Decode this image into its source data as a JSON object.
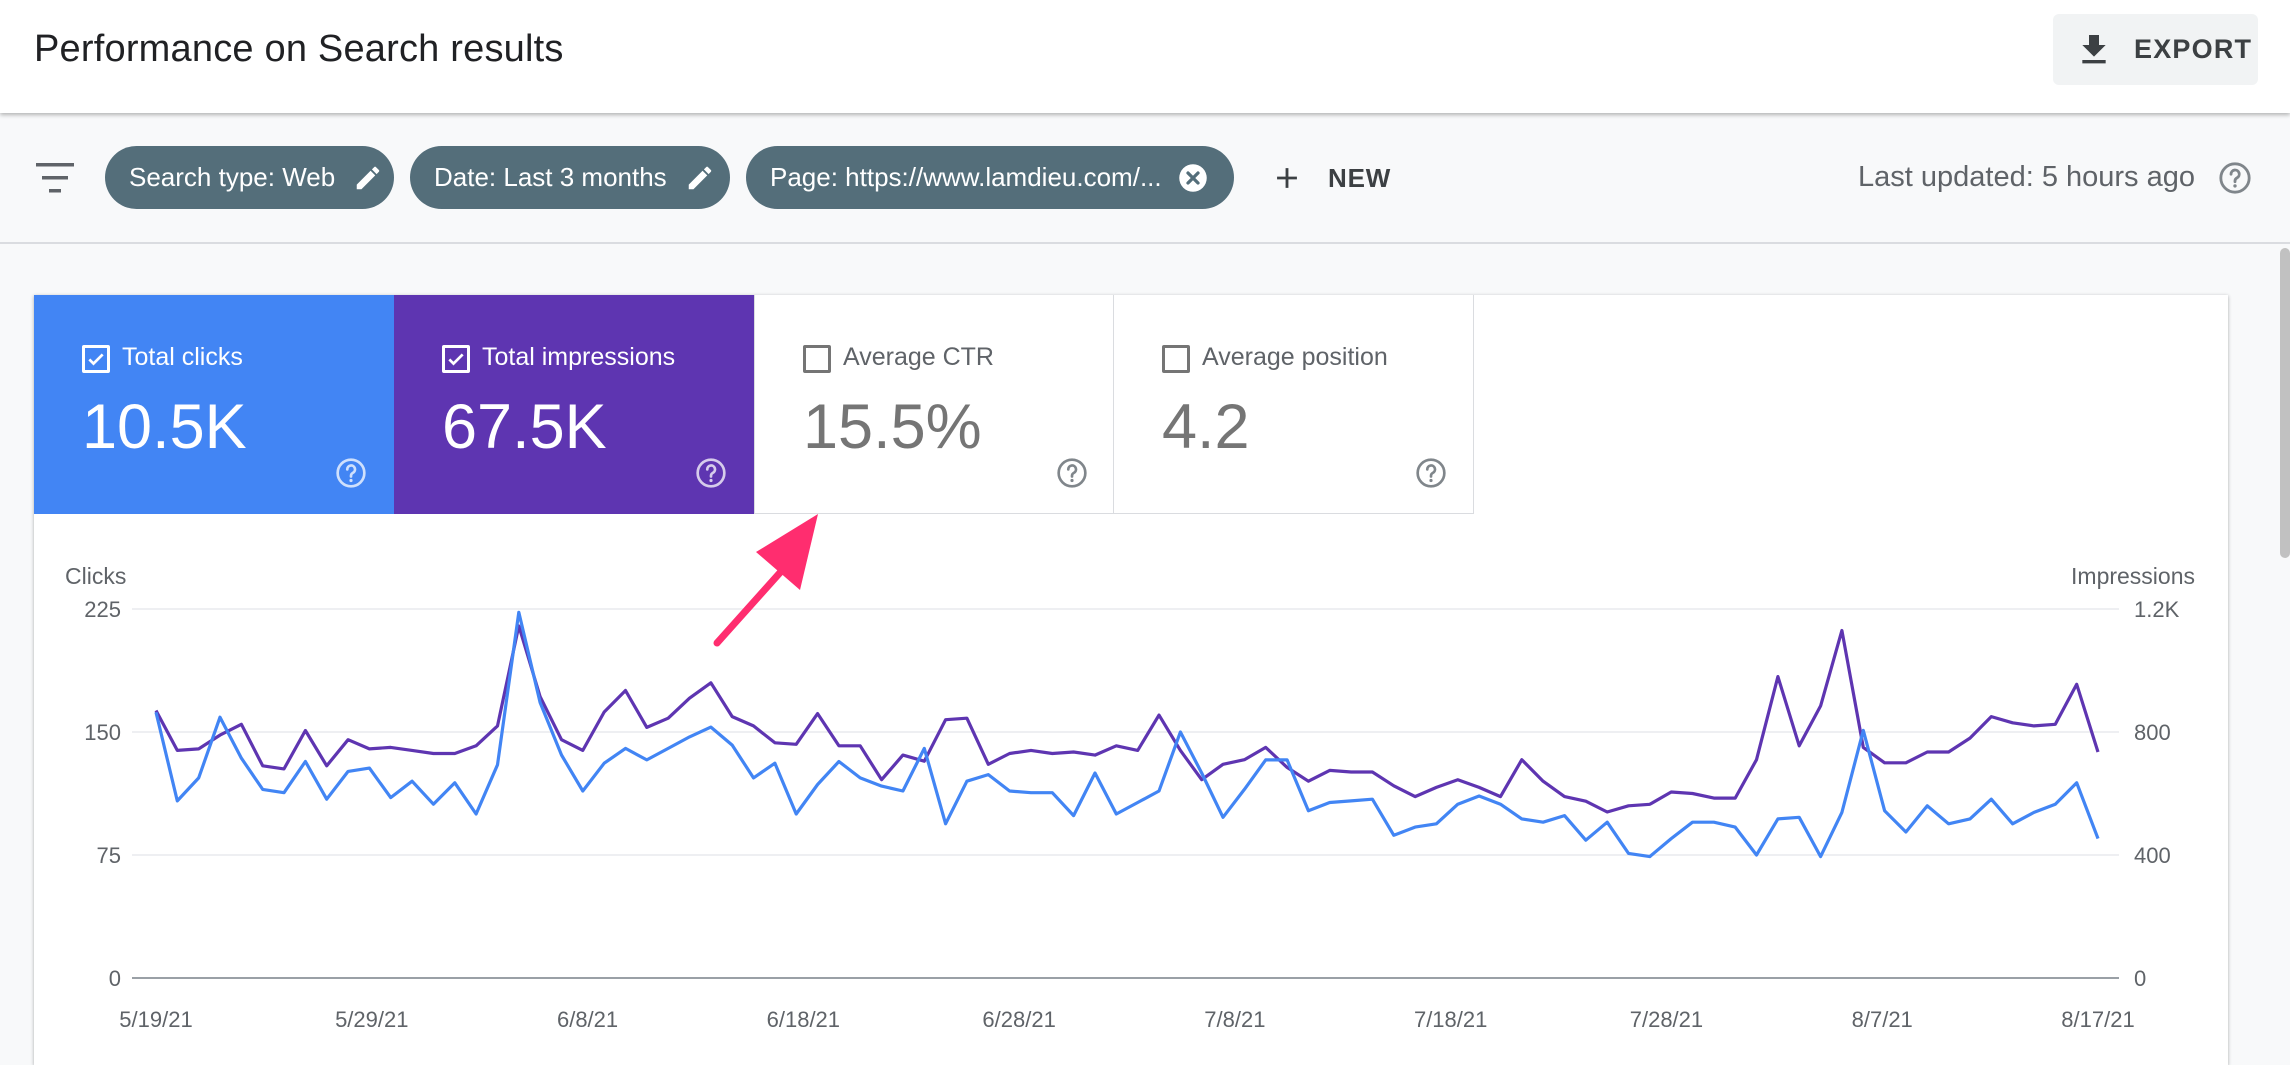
{
  "header": {
    "title": "Performance on Search results",
    "export_label": "EXPORT",
    "export_icon": "download-icon"
  },
  "filters": {
    "filter_icon": "filter-list-icon",
    "chips": [
      {
        "label": "Search type: Web",
        "icon": "edit-icon"
      },
      {
        "label": "Date: Last 3 months",
        "icon": "edit-icon"
      },
      {
        "label": "Page: https://www.lamdieu.com/...",
        "icon": "close-circle-icon"
      }
    ],
    "new_label": "NEW",
    "last_updated": "Last updated: 5 hours ago"
  },
  "metrics": [
    {
      "label": "Total clicks",
      "value": "10.5K",
      "checked": true,
      "color": "#4285f4"
    },
    {
      "label": "Total impressions",
      "value": "67.5K",
      "checked": true,
      "color": "#5e35b1"
    },
    {
      "label": "Average CTR",
      "value": "15.5%",
      "checked": false
    },
    {
      "label": "Average position",
      "value": "4.2",
      "checked": false
    }
  ],
  "annotation": {
    "icon": "pointer-arrow-icon",
    "color": "#ff2d6f"
  },
  "chart_data": {
    "type": "line",
    "ylabel_left": "Clicks",
    "ylabel_right": "Impressions",
    "y_left_ticks": [
      "225",
      "150",
      "75",
      "0"
    ],
    "y_right_ticks": [
      "1.2K",
      "800",
      "400",
      "0"
    ],
    "ylim_left": [
      0,
      225
    ],
    "ylim_right": [
      0,
      1200
    ],
    "x_tick_labels": [
      "5/19/21",
      "5/29/21",
      "6/8/21",
      "6/18/21",
      "6/28/21",
      "7/8/21",
      "7/18/21",
      "7/28/21",
      "8/7/21",
      "8/17/21"
    ],
    "grid": true,
    "series": [
      {
        "name": "Clicks",
        "axis": "left",
        "color": "#4285f4",
        "values": [
          162,
          108,
          122,
          159,
          134,
          115,
          113,
          132,
          109,
          126,
          128,
          110,
          120,
          106,
          119,
          100,
          130,
          223,
          168,
          136,
          114,
          131,
          140,
          133,
          140,
          147,
          153,
          142,
          122,
          131,
          100,
          118,
          132,
          122,
          117,
          114,
          140,
          94,
          120,
          124,
          114,
          113,
          113,
          99,
          125,
          100,
          107,
          114,
          150,
          125,
          98,
          115,
          133,
          133,
          102,
          107,
          108,
          109,
          87,
          92,
          94,
          106,
          111,
          106,
          97,
          95,
          99,
          84,
          95,
          76,
          74,
          85,
          95,
          95,
          92,
          75,
          97,
          98,
          74,
          101,
          151,
          102,
          89,
          105,
          94,
          97,
          109,
          94,
          101,
          106,
          119,
          85
        ]
      },
      {
        "name": "Impressions",
        "axis": "right",
        "color": "#5e35b1",
        "values": [
          870,
          740,
          745,
          790,
          825,
          690,
          680,
          805,
          690,
          775,
          745,
          750,
          740,
          730,
          730,
          755,
          820,
          1145,
          915,
          775,
          740,
          865,
          935,
          815,
          845,
          910,
          960,
          850,
          820,
          765,
          760,
          860,
          755,
          755,
          645,
          725,
          705,
          840,
          845,
          695,
          730,
          740,
          730,
          735,
          725,
          755,
          740,
          855,
          740,
          645,
          695,
          710,
          750,
          685,
          640,
          675,
          670,
          670,
          625,
          590,
          620,
          645,
          620,
          590,
          710,
          640,
          590,
          575,
          540,
          560,
          565,
          605,
          600,
          585,
          585,
          710,
          980,
          755,
          885,
          1130,
          750,
          700,
          700,
          735,
          735,
          780,
          850,
          830,
          820,
          825,
          955,
          735
        ]
      }
    ]
  }
}
